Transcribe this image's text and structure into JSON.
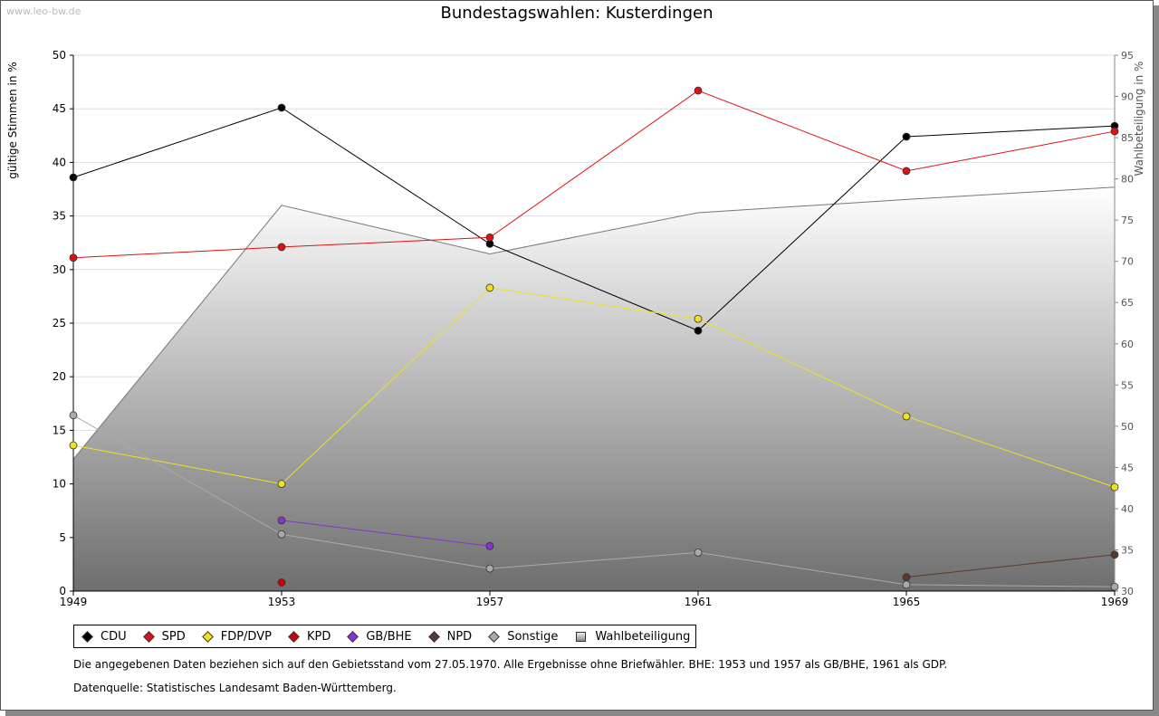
{
  "watermark": "www.leo-bw.de",
  "chart_data": {
    "type": "line",
    "title": "Bundestagswahlen: Kusterdingen",
    "ylabel_left": "gültige Stimmen in %",
    "ylabel_right": "Wahlbeteiligung in %",
    "x": [
      "1949",
      "1953",
      "1957",
      "1961",
      "1965",
      "1969"
    ],
    "ylim_left": [
      0,
      50
    ],
    "ylim_right": [
      30,
      95
    ],
    "yticks_left": [
      "0",
      "5",
      "10",
      "15",
      "20",
      "25",
      "30",
      "35",
      "40",
      "45",
      "50"
    ],
    "yticks_right": [
      "30",
      "35",
      "40",
      "45",
      "50",
      "55",
      "60",
      "65",
      "70",
      "75",
      "80",
      "85",
      "90",
      "95"
    ],
    "grid": true,
    "series": [
      {
        "name": "CDU",
        "color": "#000000",
        "values": [
          38.6,
          45.1,
          32.4,
          24.3,
          42.4,
          43.4
        ]
      },
      {
        "name": "SPD",
        "color": "#dd1111",
        "values": [
          31.1,
          32.1,
          33.0,
          46.7,
          39.2,
          42.9
        ]
      },
      {
        "name": "FDP/DVP",
        "color": "#f0e020",
        "values": [
          13.6,
          10.0,
          28.3,
          25.4,
          16.3,
          9.7
        ]
      },
      {
        "name": "KPD",
        "color": "#cc0000",
        "values": [
          null,
          0.8,
          null,
          null,
          null,
          null
        ]
      },
      {
        "name": "GB/BHE",
        "color": "#8833cc",
        "values": [
          null,
          6.6,
          4.2,
          null,
          null,
          null
        ]
      },
      {
        "name": "NPD",
        "color": "#5a3a2a",
        "values": [
          null,
          null,
          null,
          null,
          1.3,
          3.4
        ]
      },
      {
        "name": "Sonstige",
        "color": "#aaaaaa",
        "values": [
          16.4,
          5.3,
          2.1,
          3.6,
          0.6,
          0.4
        ]
      },
      {
        "name": "Wahlbeteiligung",
        "color": "#777777",
        "axis": "right",
        "values": [
          46.0,
          76.8,
          70.9,
          75.9,
          77.5,
          79.0
        ]
      }
    ]
  },
  "notes": {
    "line1": "Die angegebenen Daten beziehen sich auf den Gebietsstand vom 27.05.1970. Alle Ergebnisse ohne Briefwähler. BHE: 1953 und 1957 als GB/BHE, 1961 als GDP.",
    "line2": "Datenquelle: Statistisches Landesamt Baden-Württemberg."
  }
}
